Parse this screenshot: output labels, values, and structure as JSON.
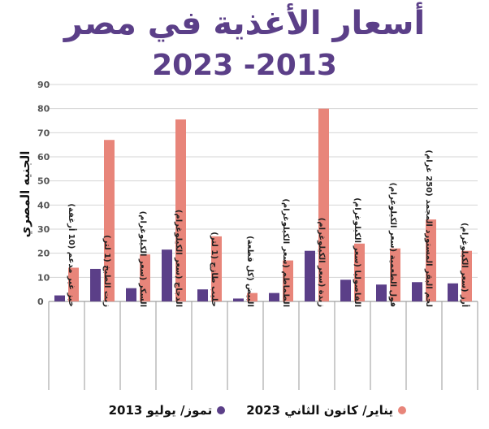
{
  "chart_data": {
    "type": "bar",
    "title": "أسعار الأغذية في مصر",
    "subtitle": "2023 -2013",
    "ylabel": "الجنيه المصري",
    "xlabel": "",
    "ylim": [
      0,
      90
    ],
    "yticks": [
      "0",
      "10",
      "20",
      "30",
      "40",
      "50",
      "60",
      "70",
      "80",
      "90"
    ],
    "grid": true,
    "legend_position": "bottom",
    "categories": [
      "خبز غير مدعم (10 أرغفة)",
      "زيت الطبخ (1 لتر)",
      "السكر (سعر الكيلوغرام)",
      "الدجاج (سعر الكيلوغرام)",
      "حليب طازج (1 لتر)",
      "البيض (كل قطعة)",
      "الطماطم (سعر الكيلوغرام)",
      "زبدة (سعر الكيلوغرام)",
      "الفاصوليا (سعر الكيلوغرام)",
      "فول الطعمية (سعر الكيلوغرام)",
      "لحم البقر المستورد المجمد (250 غرام)",
      "أرز (سعر الكيلوغرام)"
    ],
    "series": [
      {
        "name": "تموز/ يوليو 2013",
        "color": "#5b3f88",
        "values": [
          2.5,
          13.5,
          5.5,
          21.5,
          5,
          1.2,
          3.5,
          21,
          9,
          7,
          8,
          7.5
        ]
      },
      {
        "name": "يناير/ كانون الثاني 2023",
        "color": "#e8857a",
        "values": [
          14,
          67,
          19.5,
          75.5,
          27,
          3.5,
          17,
          80,
          24,
          22,
          34,
          21
        ]
      }
    ]
  },
  "legend": {
    "item_2023": "يناير/ كانون الثاني 2023",
    "item_2013": "تموز/ يوليو 2013"
  }
}
